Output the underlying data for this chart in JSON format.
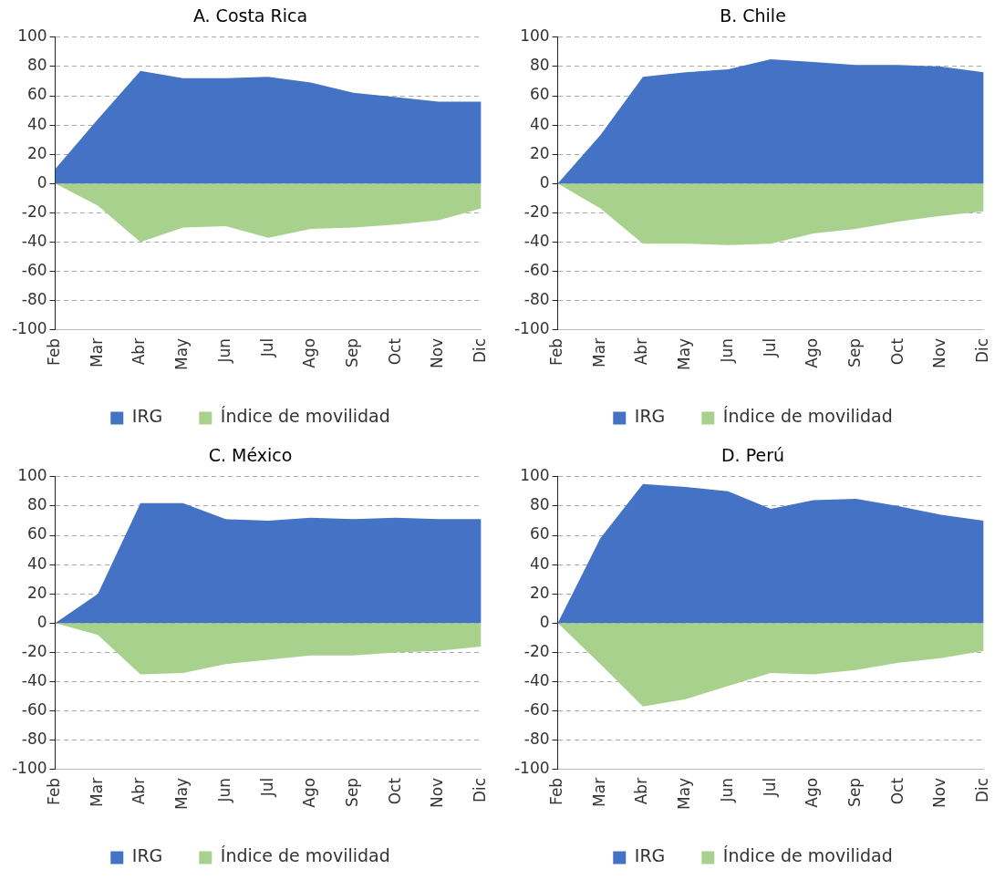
{
  "chart_data": [
    {
      "type": "area",
      "title": "A. Costa Rica",
      "categories": [
        "Feb",
        "Mar",
        "Abr",
        "May",
        "Jun",
        "Jul",
        "Ago",
        "Sep",
        "Oct",
        "Nov",
        "Dic"
      ],
      "series": [
        {
          "name": "IRG",
          "color": "#4472c4",
          "values": [
            10,
            44,
            77,
            72,
            72,
            73,
            69,
            62,
            59,
            56,
            56
          ]
        },
        {
          "name": "Índice de movilidad",
          "color": "#a9d18e",
          "values": [
            0,
            -15,
            -40,
            -30,
            -29,
            -37,
            -31,
            -30,
            -28,
            -25,
            -17
          ]
        }
      ],
      "ylim": [
        -100,
        100
      ],
      "yticks": [
        -100,
        -80,
        -60,
        -40,
        -20,
        0,
        20,
        40,
        60,
        80,
        100
      ],
      "grid": "y",
      "legend": "bottom"
    },
    {
      "type": "area",
      "title": "B. Chile",
      "categories": [
        "Feb",
        "Mar",
        "Abr",
        "May",
        "Jun",
        "Jul",
        "Ago",
        "Sep",
        "Oct",
        "Nov",
        "Dic"
      ],
      "series": [
        {
          "name": "IRG",
          "color": "#4472c4",
          "values": [
            0,
            33,
            73,
            76,
            78,
            85,
            83,
            81,
            81,
            80,
            76
          ]
        },
        {
          "name": "Índice de movilidad",
          "color": "#a9d18e",
          "values": [
            0,
            -17,
            -41,
            -41,
            -42,
            -41,
            -34,
            -31,
            -26,
            -22,
            -19
          ]
        }
      ],
      "ylim": [
        -100,
        100
      ],
      "yticks": [
        -100,
        -80,
        -60,
        -40,
        -20,
        0,
        20,
        40,
        60,
        80,
        100
      ],
      "grid": "y",
      "legend": "bottom"
    },
    {
      "type": "area",
      "title": "C. México",
      "categories": [
        "Feb",
        "Mar",
        "Abr",
        "May",
        "Jun",
        "Jul",
        "Ago",
        "Sep",
        "Oct",
        "Nov",
        "Dic"
      ],
      "series": [
        {
          "name": "IRG",
          "color": "#4472c4",
          "values": [
            0,
            20,
            82,
            82,
            71,
            70,
            72,
            71,
            72,
            71,
            71
          ]
        },
        {
          "name": "Índice de movilidad",
          "color": "#a9d18e",
          "values": [
            0,
            -8,
            -35,
            -34,
            -28,
            -25,
            -22,
            -22,
            -20,
            -19,
            -16
          ]
        }
      ],
      "ylim": [
        -100,
        100
      ],
      "yticks": [
        -100,
        -80,
        -60,
        -40,
        -20,
        0,
        20,
        40,
        60,
        80,
        100
      ],
      "grid": "y",
      "legend": "bottom"
    },
    {
      "type": "area",
      "title": "D. Perú",
      "categories": [
        "Feb",
        "Mar",
        "Abr",
        "May",
        "Jun",
        "Jul",
        "Ago",
        "Sep",
        "Oct",
        "Nov",
        "Dic"
      ],
      "series": [
        {
          "name": "IRG",
          "color": "#4472c4",
          "values": [
            0,
            58,
            95,
            93,
            90,
            78,
            84,
            85,
            80,
            74,
            70
          ]
        },
        {
          "name": "Índice de movilidad",
          "color": "#a9d18e",
          "values": [
            0,
            -28,
            -57,
            -52,
            -43,
            -34,
            -35,
            -32,
            -27,
            -24,
            -19
          ]
        }
      ],
      "ylim": [
        -100,
        100
      ],
      "yticks": [
        -100,
        -80,
        -60,
        -40,
        -20,
        0,
        20,
        40,
        60,
        80,
        100
      ],
      "grid": "y",
      "legend": "bottom"
    }
  ]
}
